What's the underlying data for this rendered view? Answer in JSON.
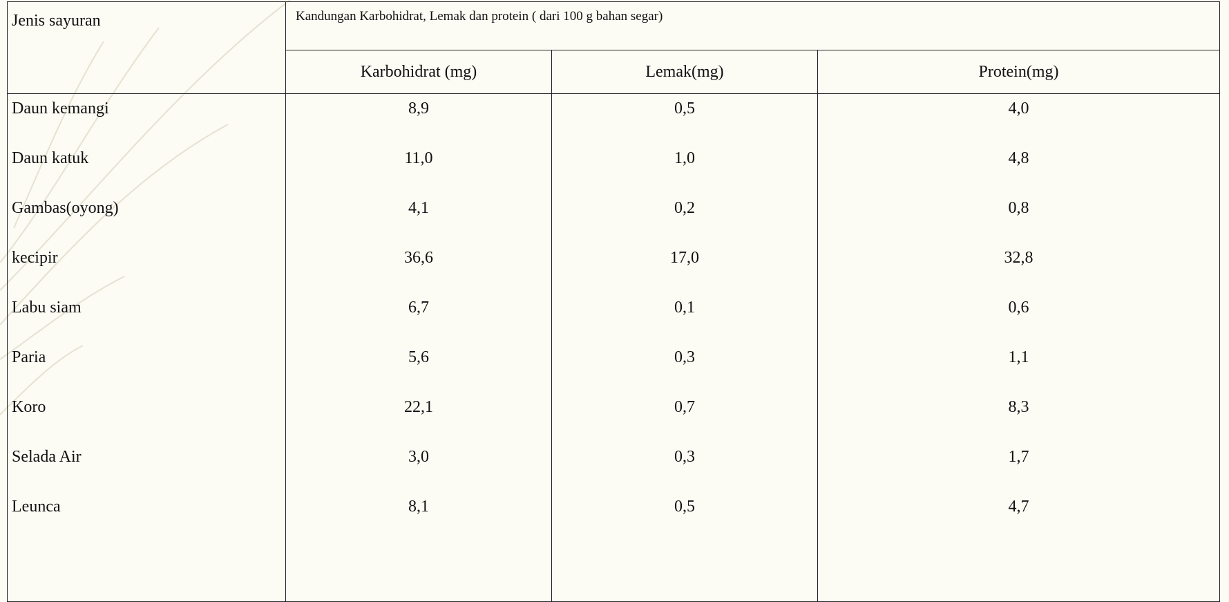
{
  "table": {
    "corner": "Jenis sayuran",
    "group_header": "Kandungan Karbohidrat, Lemak dan protein ( dari 100 g bahan segar)",
    "columns": [
      "Karbohidrat (mg)",
      "Lemak(mg)",
      "Protein(mg)"
    ],
    "rows": [
      [
        "Daun kemangi",
        "8,9",
        "0,5",
        "4,0"
      ],
      [
        "Daun katuk",
        "11,0",
        "1,0",
        "4,8"
      ],
      [
        "Gambas(oyong)",
        "4,1",
        "0,2",
        "0,8"
      ],
      [
        "kecipir",
        "36,6",
        "17,0",
        "32,8"
      ],
      [
        "Labu siam",
        "6,7",
        "0,1",
        "0,6"
      ],
      [
        "Paria",
        "5,6",
        "0,3",
        "1,1"
      ],
      [
        "Koro",
        "22,1",
        "0,7",
        "8,3"
      ],
      [
        "Selada Air",
        "3,0",
        "0,3",
        "1,7"
      ],
      [
        "Leunca",
        "8,1",
        "0,5",
        "4,7"
      ]
    ]
  }
}
